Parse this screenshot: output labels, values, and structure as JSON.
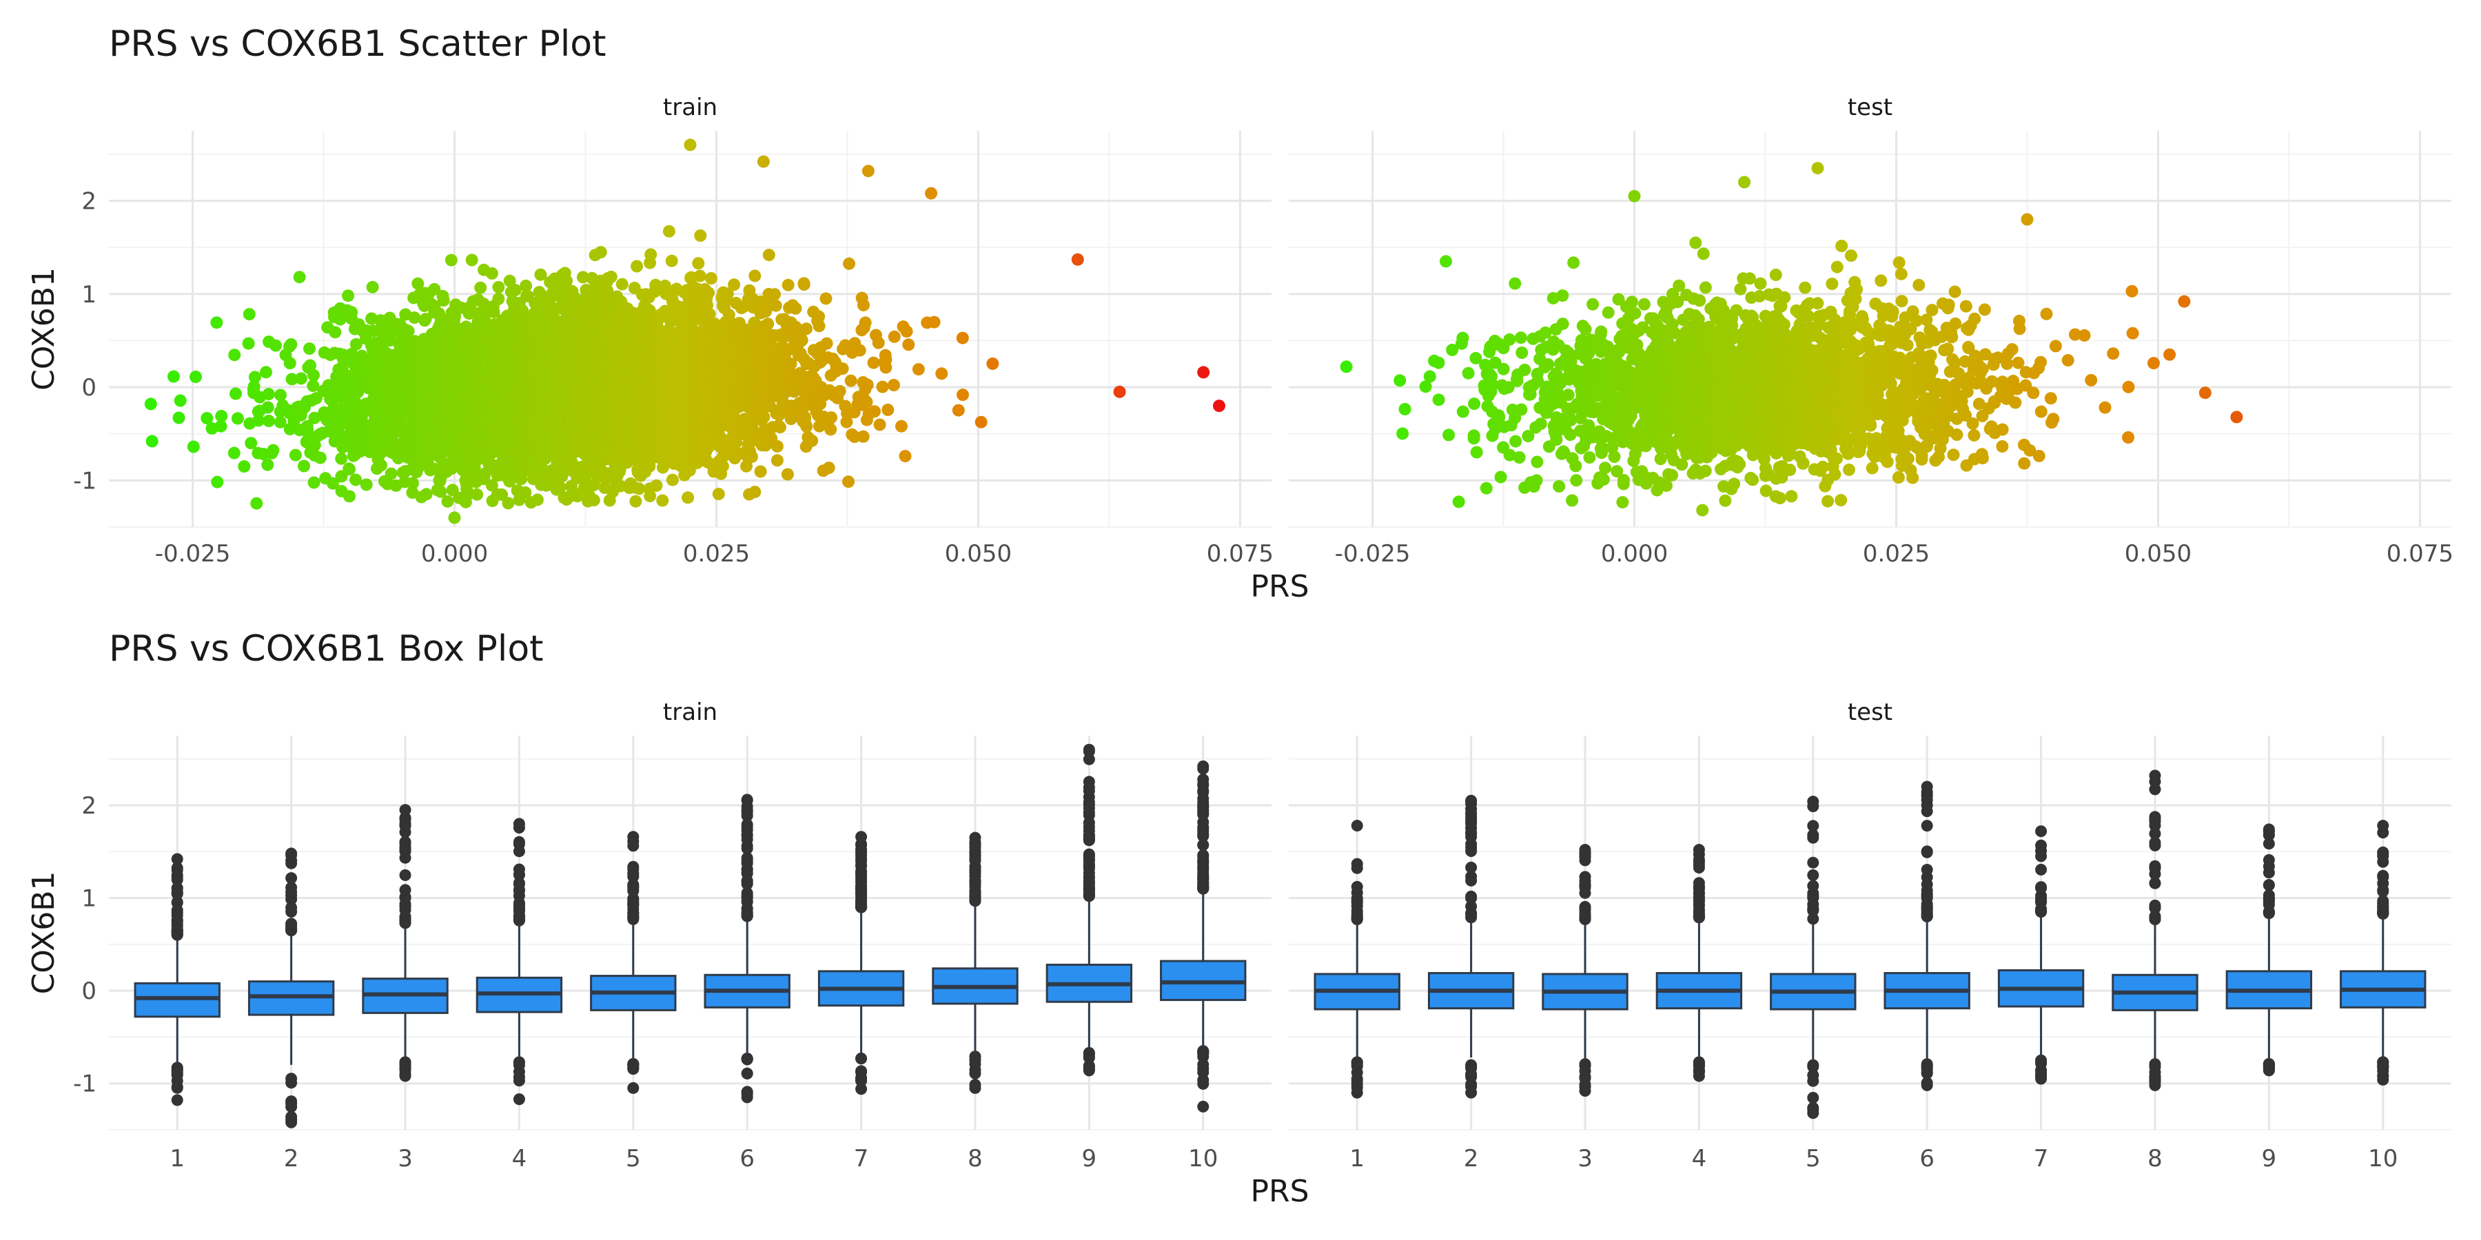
{
  "scatter_panel": {
    "title": "PRS vs COX6B1 Scatter Plot"
  },
  "box_panel": {
    "title": "PRS vs COX6B1 Box Plot"
  },
  "colors": {
    "low": "#33ee00",
    "high": "#ee1111",
    "box_fill": "#2b8ff0",
    "box_stroke": "#2f3b4a",
    "outlier": "#333333",
    "grid_major": "#e6e6e6",
    "grid_minor": "#f2f2f2",
    "text": "#4d4d4d"
  },
  "chart_data": [
    {
      "type": "scatter",
      "title": "PRS vs COX6B1 Scatter Plot",
      "xlabel": "PRS",
      "ylabel": "COX6B1",
      "facets": [
        "train",
        "test"
      ],
      "xlim": [
        -0.033,
        0.078
      ],
      "ylim": [
        -1.5,
        2.75
      ],
      "x_ticks": [
        -0.025,
        0.0,
        0.025,
        0.05,
        0.075
      ],
      "x_tick_labels": [
        "-0.025",
        "0.000",
        "0.025",
        "0.050",
        "0.075"
      ],
      "y_ticks": [
        -1,
        0,
        1,
        2
      ],
      "y_tick_labels": [
        "-1",
        "0",
        "1",
        "2"
      ],
      "grid": true,
      "legend": "none",
      "color_mapping": "PRS (green low to red high)",
      "distribution": {
        "train": {
          "n_approx": 6000,
          "prs_mean": 0.011,
          "prs_sd": 0.011,
          "cox6b1_sd": 0.45,
          "slope": 5.5
        },
        "test": {
          "n_approx": 2500,
          "prs_mean": 0.011,
          "prs_sd": 0.011,
          "cox6b1_sd": 0.42,
          "slope": 2.0
        }
      },
      "notable_points": {
        "train": [
          [
            -0.029,
            -0.18
          ],
          [
            0.0,
            -1.4
          ],
          [
            0.0225,
            2.6
          ],
          [
            0.0295,
            2.42
          ],
          [
            0.0395,
            2.32
          ],
          [
            0.0455,
            2.08
          ],
          [
            0.0595,
            1.37
          ],
          [
            0.0635,
            -0.05
          ],
          [
            0.0715,
            0.16
          ],
          [
            0.073,
            -0.2
          ]
        ],
        "test": [
          [
            -0.0275,
            0.22
          ],
          [
            -0.018,
            1.35
          ],
          [
            0.0,
            2.05
          ],
          [
            0.0065,
            -1.32
          ],
          [
            0.0105,
            2.2
          ],
          [
            0.0175,
            2.35
          ],
          [
            0.0375,
            1.8
          ],
          [
            0.0475,
            1.03
          ],
          [
            0.0525,
            0.92
          ],
          [
            0.0545,
            -0.06
          ],
          [
            0.0575,
            -0.32
          ]
        ]
      }
    },
    {
      "type": "box",
      "title": "PRS vs COX6B1 Box Plot",
      "xlabel": "PRS",
      "ylabel": "COX6B1",
      "facets": [
        "train",
        "test"
      ],
      "categories": [
        "1",
        "2",
        "3",
        "4",
        "5",
        "6",
        "7",
        "8",
        "9",
        "10"
      ],
      "ylim": [
        -1.5,
        2.75
      ],
      "y_ticks": [
        -1,
        0,
        1,
        2
      ],
      "y_tick_labels": [
        "-1",
        "0",
        "1",
        "2"
      ],
      "grid": true,
      "legend": "none",
      "series": [
        {
          "facet": "train",
          "boxes": [
            {
              "q1": -0.28,
              "median": -0.08,
              "q3": 0.08,
              "whisker_low": -0.78,
              "whisker_high": 0.55,
              "outlier_low": -1.18,
              "outlier_high": 1.42
            },
            {
              "q1": -0.26,
              "median": -0.06,
              "q3": 0.1,
              "whisker_low": -0.8,
              "whisker_high": 0.6,
              "outlier_low": -1.42,
              "outlier_high": 1.48
            },
            {
              "q1": -0.24,
              "median": -0.04,
              "q3": 0.13,
              "whisker_low": -0.72,
              "whisker_high": 0.68,
              "outlier_low": -0.92,
              "outlier_high": 1.95
            },
            {
              "q1": -0.23,
              "median": -0.03,
              "q3": 0.14,
              "whisker_low": -0.72,
              "whisker_high": 0.7,
              "outlier_low": -1.17,
              "outlier_high": 1.8
            },
            {
              "q1": -0.21,
              "median": -0.02,
              "q3": 0.16,
              "whisker_low": -0.74,
              "whisker_high": 0.72,
              "outlier_low": -1.05,
              "outlier_high": 1.66
            },
            {
              "q1": -0.18,
              "median": 0.0,
              "q3": 0.17,
              "whisker_low": -0.68,
              "whisker_high": 0.75,
              "outlier_low": -1.15,
              "outlier_high": 2.06
            },
            {
              "q1": -0.16,
              "median": 0.02,
              "q3": 0.21,
              "whisker_low": -0.68,
              "whisker_high": 0.85,
              "outlier_low": -1.06,
              "outlier_high": 1.66
            },
            {
              "q1": -0.14,
              "median": 0.04,
              "q3": 0.24,
              "whisker_low": -0.66,
              "whisker_high": 0.92,
              "outlier_low": -1.05,
              "outlier_high": 1.65
            },
            {
              "q1": -0.12,
              "median": 0.07,
              "q3": 0.28,
              "whisker_low": -0.62,
              "whisker_high": 0.97,
              "outlier_low": -0.86,
              "outlier_high": 2.6
            },
            {
              "q1": -0.1,
              "median": 0.09,
              "q3": 0.32,
              "whisker_low": -0.6,
              "whisker_high": 1.05,
              "outlier_low": -1.25,
              "outlier_high": 2.42
            }
          ]
        },
        {
          "facet": "test",
          "boxes": [
            {
              "q1": -0.2,
              "median": 0.0,
              "q3": 0.18,
              "whisker_low": -0.72,
              "whisker_high": 0.72,
              "outlier_low": -1.1,
              "outlier_high": 1.78
            },
            {
              "q1": -0.19,
              "median": 0.0,
              "q3": 0.19,
              "whisker_low": -0.72,
              "whisker_high": 0.74,
              "outlier_low": -1.1,
              "outlier_high": 2.05
            },
            {
              "q1": -0.2,
              "median": -0.01,
              "q3": 0.18,
              "whisker_low": -0.74,
              "whisker_high": 0.72,
              "outlier_low": -1.08,
              "outlier_high": 1.52
            },
            {
              "q1": -0.19,
              "median": 0.0,
              "q3": 0.19,
              "whisker_low": -0.72,
              "whisker_high": 0.74,
              "outlier_low": -0.92,
              "outlier_high": 1.52
            },
            {
              "q1": -0.2,
              "median": -0.01,
              "q3": 0.18,
              "whisker_low": -0.74,
              "whisker_high": 0.72,
              "outlier_low": -1.32,
              "outlier_high": 2.04
            },
            {
              "q1": -0.19,
              "median": 0.0,
              "q3": 0.19,
              "whisker_low": -0.74,
              "whisker_high": 0.75,
              "outlier_low": -1.02,
              "outlier_high": 2.2
            },
            {
              "q1": -0.17,
              "median": 0.02,
              "q3": 0.22,
              "whisker_low": -0.7,
              "whisker_high": 0.8,
              "outlier_low": -0.95,
              "outlier_high": 1.72
            },
            {
              "q1": -0.21,
              "median": -0.02,
              "q3": 0.17,
              "whisker_low": -0.74,
              "whisker_high": 0.72,
              "outlier_low": -1.02,
              "outlier_high": 2.32
            },
            {
              "q1": -0.19,
              "median": 0.0,
              "q3": 0.21,
              "whisker_low": -0.74,
              "whisker_high": 0.78,
              "outlier_low": -0.86,
              "outlier_high": 1.74
            },
            {
              "q1": -0.18,
              "median": 0.01,
              "q3": 0.21,
              "whisker_low": -0.72,
              "whisker_high": 0.78,
              "outlier_low": -0.96,
              "outlier_high": 1.78
            }
          ]
        }
      ]
    }
  ]
}
